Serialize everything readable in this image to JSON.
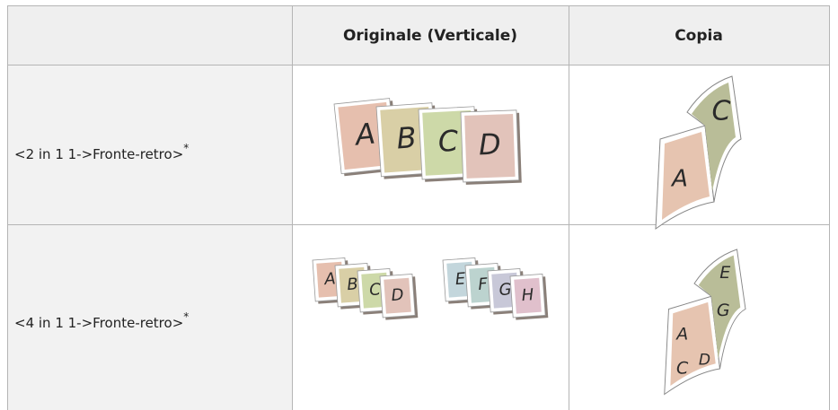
{
  "table": {
    "headers": [
      "Originale (Verticale)",
      "Copia"
    ],
    "rows": [
      {
        "label": "<2 in 1 1->Fronte-retro>",
        "note": "*",
        "original": [
          "A",
          "B",
          "C",
          "D"
        ],
        "copy": [
          "A",
          "C"
        ]
      },
      {
        "label": "<4 in 1 1->Fronte-retro>",
        "note": "*",
        "original": [
          "A",
          "B",
          "C",
          "D",
          "E",
          "F",
          "G",
          "H"
        ],
        "copy": [
          "A",
          "C",
          "D",
          "E",
          "G"
        ]
      }
    ]
  }
}
